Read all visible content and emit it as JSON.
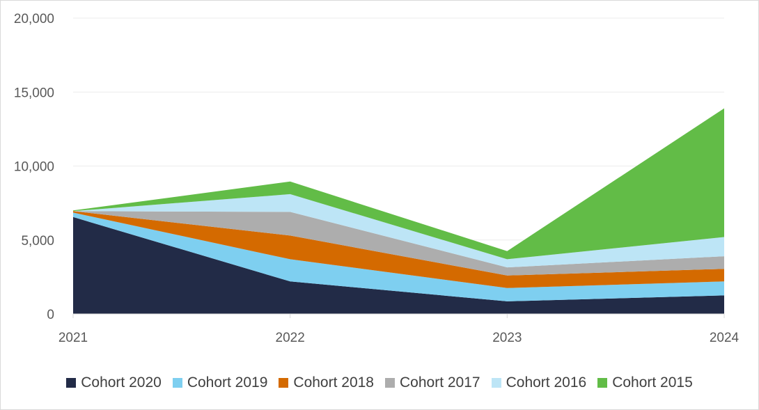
{
  "chart_data": {
    "type": "area",
    "stacked": true,
    "title": "",
    "xlabel": "",
    "ylabel": "",
    "x": [
      "2021",
      "2022",
      "2023",
      "2024"
    ],
    "ylim": [
      0,
      20000
    ],
    "yticks": [
      0,
      5000,
      10000,
      15000,
      20000
    ],
    "ytick_labels": [
      "0",
      "5,000",
      "10,000",
      "15,000",
      "20,000"
    ],
    "grid": true,
    "legend_position": "bottom",
    "series": [
      {
        "name": "Cohort 2020",
        "color": "#222b47",
        "values": [
          6550,
          2200,
          850,
          1250
        ]
      },
      {
        "name": "Cohort 2019",
        "color": "#7ecff0",
        "values": [
          300,
          1500,
          900,
          950
        ]
      },
      {
        "name": "Cohort 2018",
        "color": "#d46a00",
        "values": [
          100,
          1600,
          850,
          850
        ]
      },
      {
        "name": "Cohort 2017",
        "color": "#adadad",
        "values": [
          0,
          1600,
          550,
          850
        ]
      },
      {
        "name": "Cohort 2016",
        "color": "#bde5f6",
        "values": [
          0,
          1200,
          550,
          1300
        ]
      },
      {
        "name": "Cohort 2015",
        "color": "#62bc47",
        "values": [
          50,
          850,
          550,
          8700
        ]
      }
    ]
  }
}
